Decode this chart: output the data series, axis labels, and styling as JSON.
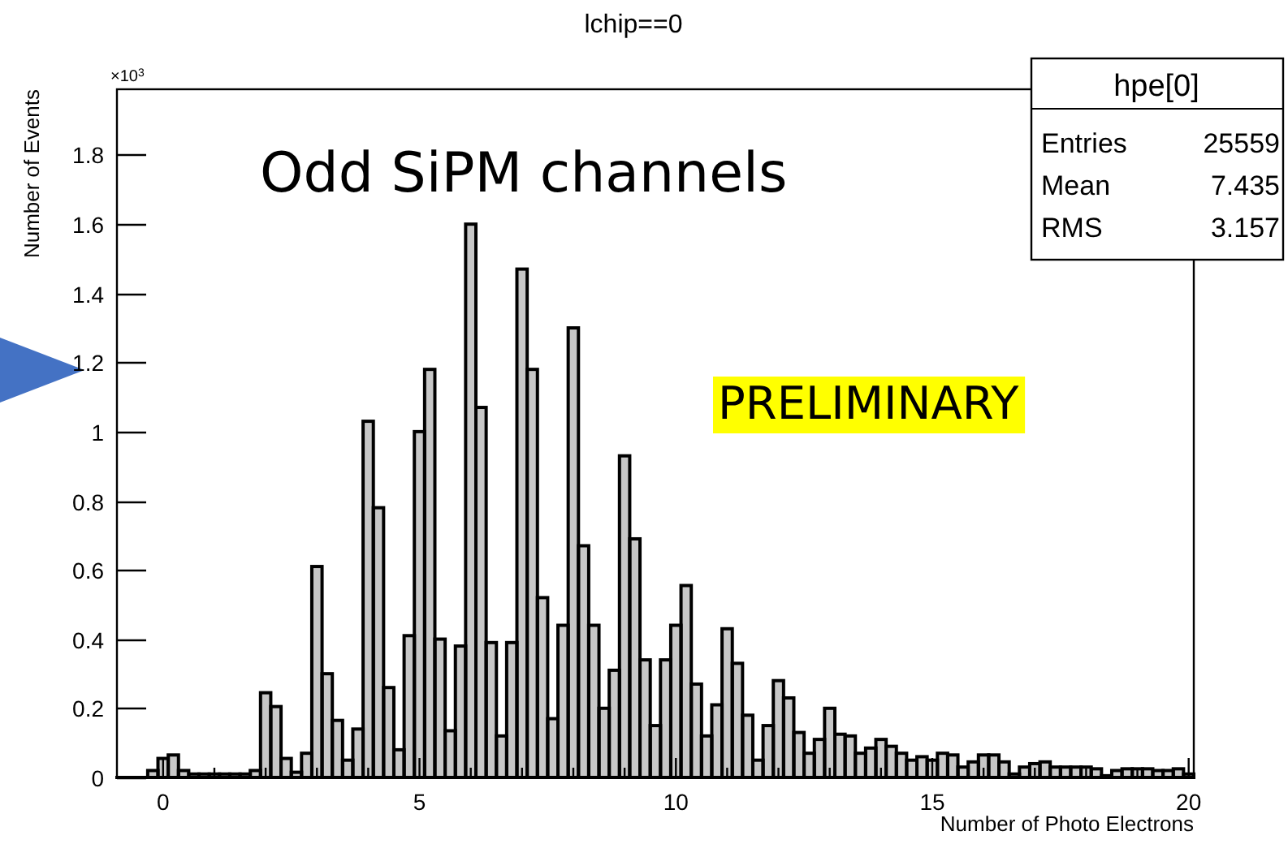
{
  "chart_data": {
    "type": "histogram",
    "title": "lchip==0",
    "xlabel": "Number of Photo Electrons",
    "ylabel": "Number of Events",
    "color": "#000000",
    "bins": [
      -0.9,
      -0.7,
      -0.5,
      -0.3,
      -0.1,
      0.1,
      0.3,
      0.5,
      0.7,
      0.9,
      1.1,
      1.3,
      1.5,
      1.7,
      1.9,
      2.1,
      2.3,
      2.5,
      2.7,
      2.9,
      3.1,
      3.3,
      3.5,
      3.7,
      3.9,
      4.1,
      4.3,
      4.5,
      4.7,
      4.9,
      5.1,
      5.3,
      5.5,
      5.7,
      5.9,
      6.1,
      6.3,
      6.5,
      6.7,
      6.9,
      7.1,
      7.3,
      7.5,
      7.7,
      7.9,
      8.1,
      8.3,
      8.5,
      8.7,
      8.9,
      9.1,
      9.3,
      9.5,
      9.7,
      9.9,
      10.1,
      10.3,
      10.5,
      10.7,
      10.9,
      11.1,
      11.3,
      11.5,
      11.7,
      11.9,
      12.1,
      12.3,
      12.5,
      12.7,
      12.9,
      13.1,
      13.3,
      13.5,
      13.7,
      13.9,
      14.1,
      14.3,
      14.5,
      14.7,
      14.9,
      15.1,
      15.3,
      15.5,
      15.7,
      15.9,
      16.1,
      16.3,
      16.5,
      16.7,
      16.9,
      17.1,
      17.3,
      17.5,
      17.7,
      17.9,
      18.1,
      18.3,
      18.5,
      18.7,
      18.9,
      19.1,
      19.3,
      19.5,
      19.7,
      19.9,
      20.1
    ],
    "values": [
      0,
      0,
      0,
      0.02,
      0.055,
      0.065,
      0.02,
      0.01,
      0.01,
      0.01,
      0.01,
      0.01,
      0.01,
      0.02,
      0.245,
      0.205,
      0.055,
      0.015,
      0.07,
      0.61,
      0.3,
      0.165,
      0.05,
      0.14,
      1.03,
      0.78,
      0.26,
      0.08,
      0.41,
      1.0,
      1.18,
      0.4,
      0.135,
      0.38,
      1.6,
      1.07,
      0.39,
      0.12,
      0.39,
      1.47,
      1.18,
      0.52,
      0.17,
      0.44,
      1.3,
      0.67,
      0.44,
      0.2,
      0.31,
      0.93,
      0.69,
      0.34,
      0.15,
      0.34,
      0.44,
      0.555,
      0.27,
      0.12,
      0.21,
      0.43,
      0.33,
      0.18,
      0.05,
      0.15,
      0.28,
      0.23,
      0.13,
      0.07,
      0.11,
      0.2,
      0.125,
      0.12,
      0.07,
      0.085,
      0.11,
      0.09,
      0.07,
      0.05,
      0.06,
      0.05,
      0.07,
      0.065,
      0.03,
      0.045,
      0.065,
      0.065,
      0.045,
      0.01,
      0.03,
      0.04,
      0.045,
      0.03,
      0.03,
      0.03,
      0.03,
      0.025,
      0.005,
      0.02,
      0.025,
      0.025,
      0.025,
      0.02,
      0.02,
      0.025,
      0.01
    ],
    "xlim": [
      -0.9,
      20.1
    ],
    "xticks": [
      0,
      {
        "value": 1,
        "label": null
      },
      {
        "value": 2,
        "label": null
      },
      {
        "value": 3,
        "label": null
      },
      {
        "value": 4,
        "label": null
      },
      5,
      {
        "value": 6,
        "label": null
      },
      {
        "value": 7,
        "label": null
      },
      {
        "value": 8,
        "label": null
      },
      {
        "value": 9,
        "label": null
      },
      10,
      {
        "value": 11,
        "label": null
      },
      {
        "value": 12,
        "label": null
      },
      {
        "value": 13,
        "label": null
      },
      {
        "value": 14,
        "label": null
      },
      15,
      {
        "value": 16,
        "label": null
      },
      {
        "value": 17,
        "label": null
      },
      {
        "value": 18,
        "label": null
      },
      {
        "value": 19,
        "label": null
      },
      20
    ],
    "ylim": [
      0,
      1.99
    ],
    "yticks": [
      0,
      0.2,
      0.4,
      0.6,
      0.8,
      1,
      1.2,
      1.4,
      1.6,
      1.8
    ],
    "annotations": [
      "×10$^{3}$",
      "Odd SiPM channels",
      "PRELIMINARY",
      "hpe[0]",
      "Entries",
      "25559",
      "Mean",
      "7.435",
      "RMS",
      "3.157"
    ]
  }
}
